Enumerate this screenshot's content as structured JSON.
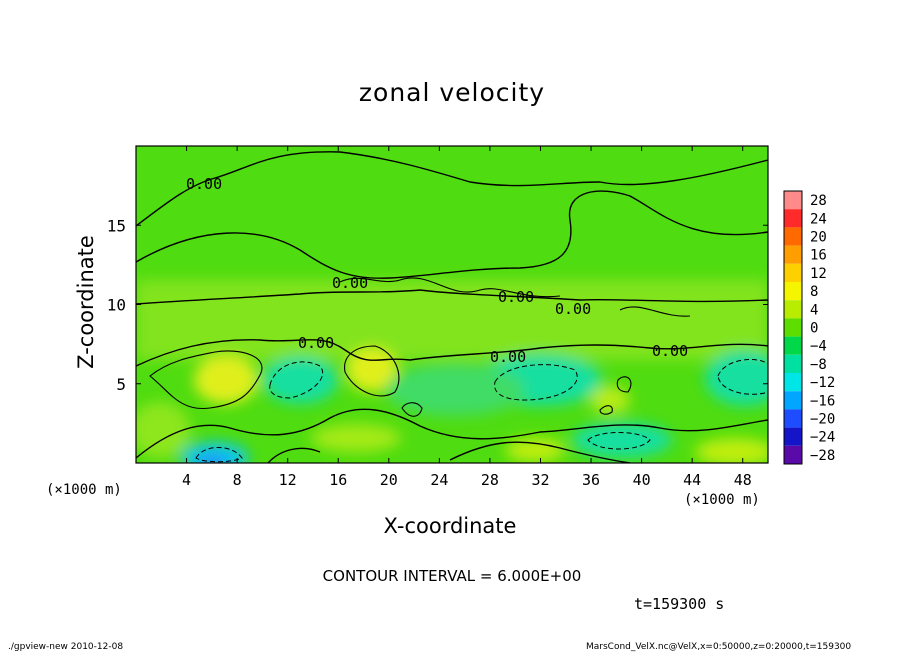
{
  "chart_data": {
    "type": "heatmap",
    "title": "zonal velocity",
    "xlabel": "X-coordinate",
    "ylabel": "Z-coordinate",
    "x_unit_label": "(×1000 m)",
    "xlim": [
      0,
      50
    ],
    "ylim": [
      0,
      20
    ],
    "x_ticks": [
      4,
      8,
      12,
      16,
      20,
      24,
      28,
      32,
      36,
      40,
      44,
      48
    ],
    "y_ticks": [
      5,
      10,
      15
    ],
    "contour_labels": [
      "0.00",
      "0.00",
      "0.00",
      "0.00",
      "0.00",
      "0.00",
      "0.00"
    ],
    "colorbar": {
      "levels": [
        28,
        24,
        20,
        16,
        12,
        8,
        4,
        0,
        -4,
        -8,
        -12,
        -16,
        -20,
        -24,
        -28
      ],
      "colors": [
        "#ff8a8a",
        "#ff2a2a",
        "#ff6a00",
        "#ff9e00",
        "#ffd000",
        "#f5f500",
        "#b8ec00",
        "#5ede00",
        "#00d84a",
        "#00e0a0",
        "#00e6e6",
        "#00a6ff",
        "#1e4cff",
        "#1414c8",
        "#5a0aa8"
      ]
    },
    "grid": false
  },
  "annotations": {
    "contour_interval": "CONTOUR INTERVAL = 6.000E+00",
    "time": "t=159300 s"
  },
  "footer": {
    "left": "./gpview-new  2010-12-08",
    "right": "MarsCond_VelX.nc@VelX,x=0:50000,z=0:20000,t=159300"
  }
}
